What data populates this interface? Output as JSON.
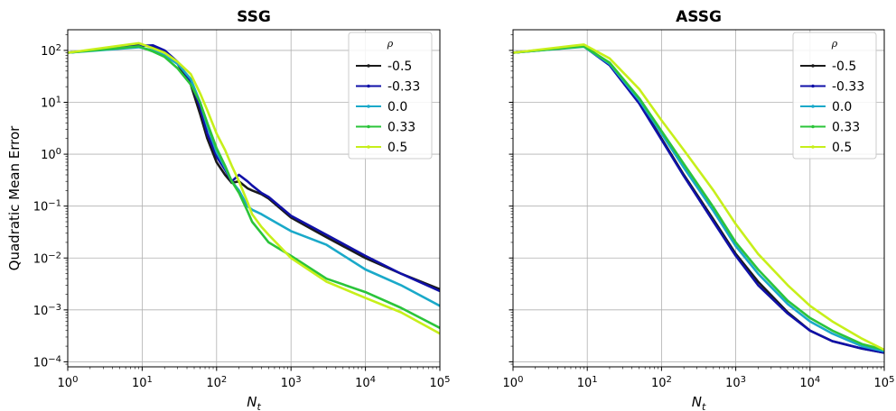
{
  "colors": {
    "-0.5": "#1a1a1a",
    "-0.33": "#1010a8",
    "0.0": "#1aa9c9",
    "0.33": "#2bc43a",
    "0.5": "#c7ef1a"
  },
  "chart_data": [
    {
      "type": "line",
      "title": "SSG",
      "xlabel": "N_t",
      "ylabel": "Quadratic Mean Error",
      "xscale": "log",
      "yscale": "log",
      "xlim": [
        1,
        100000
      ],
      "ylim": [
        8e-05,
        250
      ],
      "xticks": [
        1,
        10,
        100,
        1000,
        10000,
        100000
      ],
      "yticks": [
        0.0001,
        0.001,
        0.01,
        0.1,
        1,
        10,
        100
      ],
      "grid": true,
      "legend": {
        "title": "ρ",
        "placement": "top-right"
      },
      "series": [
        {
          "name": "-0.5",
          "x": [
            1,
            9,
            14,
            20,
            30,
            45,
            60,
            75,
            100,
            130,
            160,
            200,
            260,
            300,
            400,
            500,
            1000,
            3000,
            10000,
            30000,
            100000
          ],
          "y": [
            90,
            128,
            120,
            95,
            55,
            22,
            6,
            2,
            0.7,
            0.4,
            0.28,
            0.3,
            0.22,
            0.2,
            0.17,
            0.14,
            0.06,
            0.025,
            0.01,
            0.005,
            0.0025
          ]
        },
        {
          "name": "-0.33",
          "x": [
            1,
            9,
            14,
            20,
            30,
            45,
            60,
            75,
            100,
            130,
            160,
            200,
            260,
            300,
            400,
            500,
            1000,
            3000,
            10000,
            30000,
            100000
          ],
          "y": [
            90,
            122,
            125,
            100,
            60,
            25,
            8,
            2.5,
            0.9,
            0.5,
            0.3,
            0.4,
            0.3,
            0.25,
            0.18,
            0.15,
            0.065,
            0.028,
            0.011,
            0.005,
            0.0023
          ]
        },
        {
          "name": "0.0",
          "x": [
            1,
            9,
            14,
            20,
            30,
            45,
            60,
            75,
            100,
            130,
            160,
            200,
            260,
            300,
            400,
            500,
            1000,
            3000,
            10000,
            30000,
            100000
          ],
          "y": [
            90,
            115,
            100,
            80,
            55,
            28,
            10,
            3.5,
            1.1,
            0.55,
            0.3,
            0.2,
            0.1,
            0.085,
            0.07,
            0.058,
            0.033,
            0.018,
            0.006,
            0.003,
            0.0012
          ]
        },
        {
          "name": "0.33",
          "x": [
            1,
            9,
            14,
            20,
            30,
            45,
            60,
            75,
            100,
            130,
            160,
            200,
            260,
            300,
            400,
            500,
            1000,
            3000,
            10000,
            30000,
            100000
          ],
          "y": [
            90,
            120,
            95,
            75,
            45,
            22,
            10,
            4,
            1.3,
            0.6,
            0.3,
            0.18,
            0.08,
            0.05,
            0.03,
            0.02,
            0.011,
            0.004,
            0.0022,
            0.0011,
            0.00045
          ]
        },
        {
          "name": "0.5",
          "x": [
            1,
            9,
            14,
            20,
            30,
            45,
            60,
            75,
            100,
            130,
            160,
            200,
            260,
            300,
            400,
            500,
            1000,
            3000,
            10000,
            30000,
            100000
          ],
          "y": [
            90,
            138,
            110,
            90,
            60,
            35,
            15,
            7,
            2.5,
            1.2,
            0.6,
            0.3,
            0.12,
            0.07,
            0.04,
            0.028,
            0.01,
            0.0035,
            0.0017,
            0.0009,
            0.00035
          ]
        }
      ]
    },
    {
      "type": "line",
      "title": "ASSG",
      "xlabel": "N_t",
      "ylabel": "",
      "xscale": "log",
      "yscale": "log",
      "xlim": [
        1,
        100000
      ],
      "ylim": [
        8e-05,
        250
      ],
      "xticks": [
        1,
        10,
        100,
        1000,
        10000,
        100000
      ],
      "yticks": [
        0.0001,
        0.001,
        0.01,
        0.1,
        1,
        10,
        100
      ],
      "grid": true,
      "legend": {
        "title": "ρ",
        "placement": "top-right"
      },
      "series": [
        {
          "name": "-0.5",
          "x": [
            1,
            9,
            20,
            50,
            100,
            200,
            500,
            1000,
            2000,
            5000,
            10000,
            20000,
            50000,
            100000
          ],
          "y": [
            90,
            125,
            55,
            10,
            2,
            0.4,
            0.055,
            0.012,
            0.0035,
            0.0009,
            0.0004,
            0.00025,
            0.00018,
            0.00015
          ]
        },
        {
          "name": "-0.33",
          "x": [
            1,
            9,
            20,
            50,
            100,
            200,
            500,
            1000,
            2000,
            5000,
            10000,
            20000,
            50000,
            100000
          ],
          "y": [
            90,
            120,
            52,
            9.5,
            1.9,
            0.38,
            0.05,
            0.011,
            0.003,
            0.00085,
            0.0004,
            0.00025,
            0.00018,
            0.00015
          ]
        },
        {
          "name": "0.0",
          "x": [
            1,
            9,
            20,
            50,
            100,
            200,
            500,
            1000,
            2000,
            5000,
            10000,
            20000,
            50000,
            100000
          ],
          "y": [
            90,
            118,
            55,
            11,
            2.5,
            0.55,
            0.08,
            0.017,
            0.005,
            0.0013,
            0.0006,
            0.00035,
            0.0002,
            0.00016
          ]
        },
        {
          "name": "0.33",
          "x": [
            1,
            9,
            20,
            50,
            100,
            200,
            500,
            1000,
            2000,
            5000,
            10000,
            20000,
            50000,
            100000
          ],
          "y": [
            90,
            120,
            58,
            12,
            2.8,
            0.65,
            0.095,
            0.02,
            0.006,
            0.0015,
            0.0007,
            0.0004,
            0.00022,
            0.00017
          ]
        },
        {
          "name": "0.5",
          "x": [
            1,
            9,
            20,
            50,
            100,
            200,
            500,
            1000,
            2000,
            5000,
            10000,
            20000,
            50000,
            100000
          ],
          "y": [
            90,
            130,
            70,
            18,
            4.5,
            1.2,
            0.2,
            0.045,
            0.012,
            0.003,
            0.0012,
            0.0006,
            0.00028,
            0.00017
          ]
        }
      ]
    }
  ]
}
